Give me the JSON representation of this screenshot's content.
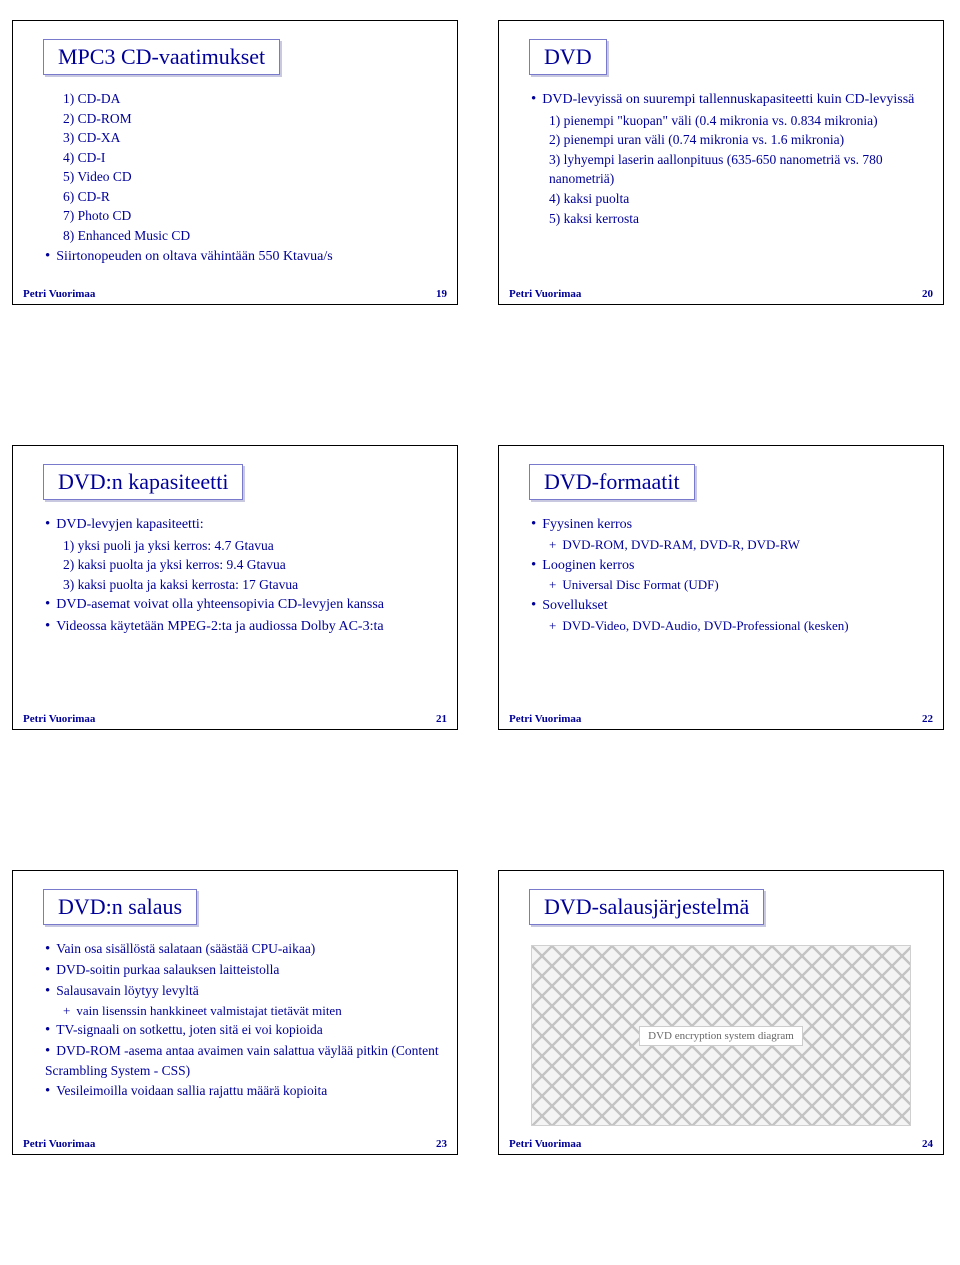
{
  "footer_author": "Petri Vuorimaa",
  "colors": {
    "accent": "#000099",
    "title_border": "#7a7acc",
    "title_shadow": "#c8c8e0",
    "slide_border": "#000000",
    "background": "#ffffff"
  },
  "slides": {
    "s19": {
      "title": "MPC3 CD-vaatimukset",
      "page": "19",
      "items": [
        "1) CD-DA",
        "2) CD-ROM",
        "3) CD-XA",
        "4) CD-I",
        "5) Video CD",
        "6) CD-R",
        "7) Photo CD",
        "8) Enhanced Music CD"
      ],
      "bullet": "Siirtonopeuden on oltava vähintään 550 Ktavua/s"
    },
    "s20": {
      "title": "DVD",
      "page": "20",
      "bullet": "DVD-levyissä on suurempi tallennuskapasiteetti kuin CD-levyissä",
      "items": [
        "1) pienempi \"kuopan\" väli (0.4 mikronia vs. 0.834 mikronia)",
        "2) pienempi uran väli (0.74 mikronia vs. 1.6 mikronia)",
        "3) lyhyempi laserin aallonpituus (635-650 nanometriä vs. 780 nanometriä)",
        "4) kaksi puolta",
        "5) kaksi kerrosta"
      ]
    },
    "s21": {
      "title": "DVD:n kapasiteetti",
      "page": "21",
      "b1": "DVD-levyjen kapasiteetti:",
      "items": [
        "1) yksi puoli ja yksi kerros: 4.7 Gtavua",
        "2) kaksi puolta ja yksi kerros: 9.4 Gtavua",
        "3) kaksi puolta ja kaksi kerrosta: 17 Gtavua"
      ],
      "b2": "DVD-asemat voivat olla yhteensopivia CD-levyjen kanssa",
      "b3": "Videossa käytetään MPEG-2:ta ja audiossa Dolby AC-3:ta"
    },
    "s22": {
      "title": "DVD-formaatit",
      "page": "22",
      "b1": "Fyysinen kerros",
      "b1s": "DVD-ROM, DVD-RAM, DVD-R, DVD-RW",
      "b2": "Looginen kerros",
      "b2s": "Universal Disc Format (UDF)",
      "b3": "Sovellukset",
      "b3s": "DVD-Video, DVD-Audio, DVD-Professional (kesken)"
    },
    "s23": {
      "title": "DVD:n salaus",
      "page": "23",
      "items": [
        "Vain osa sisällöstä salataan (säästää CPU-aikaa)",
        "DVD-soitin purkaa salauksen laitteistolla",
        "Salausavain löytyy levyltä"
      ],
      "sub1": "vain lisenssin hankkineet valmistajat tietävät miten",
      "items2": [
        "TV-signaali on sotkettu, joten sitä ei voi kopioida",
        "DVD-ROM -asema antaa avaimen vain salattua väylää pitkin (Content Scrambling System - CSS)",
        "Vesileimoilla voidaan sallia rajattu määrä kopioita"
      ]
    },
    "s24": {
      "title": "DVD-salausjärjestelmä",
      "page": "24",
      "diagram_label": "DVD encryption system diagram"
    }
  }
}
